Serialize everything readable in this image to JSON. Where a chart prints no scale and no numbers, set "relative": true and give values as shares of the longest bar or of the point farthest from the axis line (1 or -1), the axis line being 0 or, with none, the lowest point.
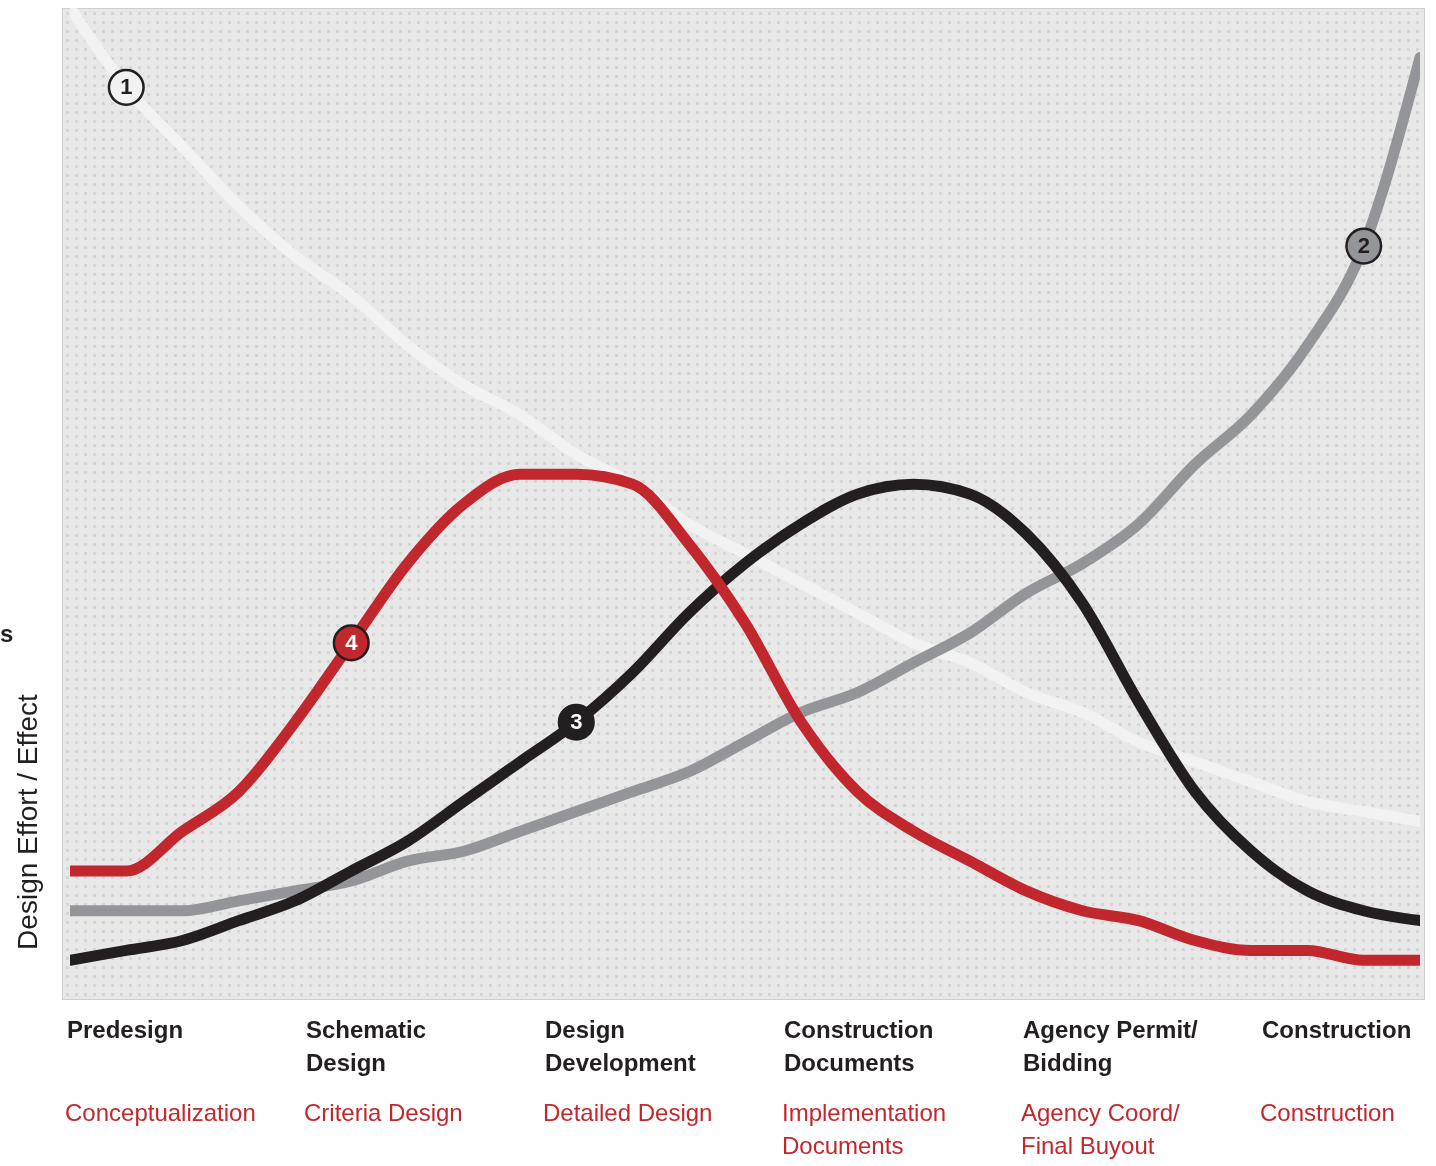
{
  "chart_data": {
    "type": "line",
    "relative": true,
    "ylabel": "Design Effort / Effect",
    "annotations": [
      "Predesign",
      "Schematic Design",
      "Design Development",
      "Construction Documents",
      "Agency Permit/ Bidding",
      "Construction",
      "Conceptualization",
      "Criteria Design",
      "Detailed Design",
      "Implementation Documents",
      "Agency Coord/ Final Buyout",
      "Construction",
      "s"
    ],
    "categories": [
      null,
      null,
      null,
      null,
      null,
      null,
      null,
      null,
      null,
      null,
      null,
      null,
      null,
      null,
      null,
      null,
      null,
      null,
      null,
      null,
      null,
      null,
      null,
      null,
      null
    ],
    "series": [
      {
        "name": "1",
        "color": "#f2f2f2",
        "values": [
          1,
          0.92,
          0.86,
          0.8,
          0.75,
          0.71,
          0.66,
          0.62,
          0.59,
          0.55,
          0.52,
          0.48,
          0.45,
          0.42,
          0.39,
          0.36,
          0.34,
          0.31,
          0.29,
          0.26,
          0.24,
          0.22,
          0.2,
          0.19,
          0.18
        ]
      },
      {
        "name": "2",
        "color": "#939598",
        "values": [
          0.09,
          0.09,
          0.09,
          0.1,
          0.11,
          0.12,
          0.14,
          0.15,
          0.17,
          0.19,
          0.21,
          0.23,
          0.26,
          0.29,
          0.31,
          0.34,
          0.37,
          0.41,
          0.44,
          0.48,
          0.54,
          0.59,
          0.66,
          0.76,
          0.95
        ]
      },
      {
        "name": "3",
        "color": "#231f20",
        "values": [
          0.04,
          0.05,
          0.06,
          0.08,
          0.1,
          0.13,
          0.16,
          0.2,
          0.24,
          0.28,
          0.33,
          0.39,
          0.44,
          0.48,
          0.51,
          0.52,
          0.51,
          0.47,
          0.4,
          0.3,
          0.21,
          0.15,
          0.11,
          0.09,
          0.08
        ]
      },
      {
        "name": "4",
        "color": "#c1272d",
        "values": [
          0.13,
          0.13,
          0.17,
          0.21,
          0.28,
          0.36,
          0.44,
          0.5,
          0.53,
          0.53,
          0.52,
          0.46,
          0.38,
          0.28,
          0.21,
          0.17,
          0.14,
          0.11,
          0.09,
          0.08,
          0.06,
          0.05,
          0.05,
          0.04,
          0.04
        ]
      }
    ]
  }
}
